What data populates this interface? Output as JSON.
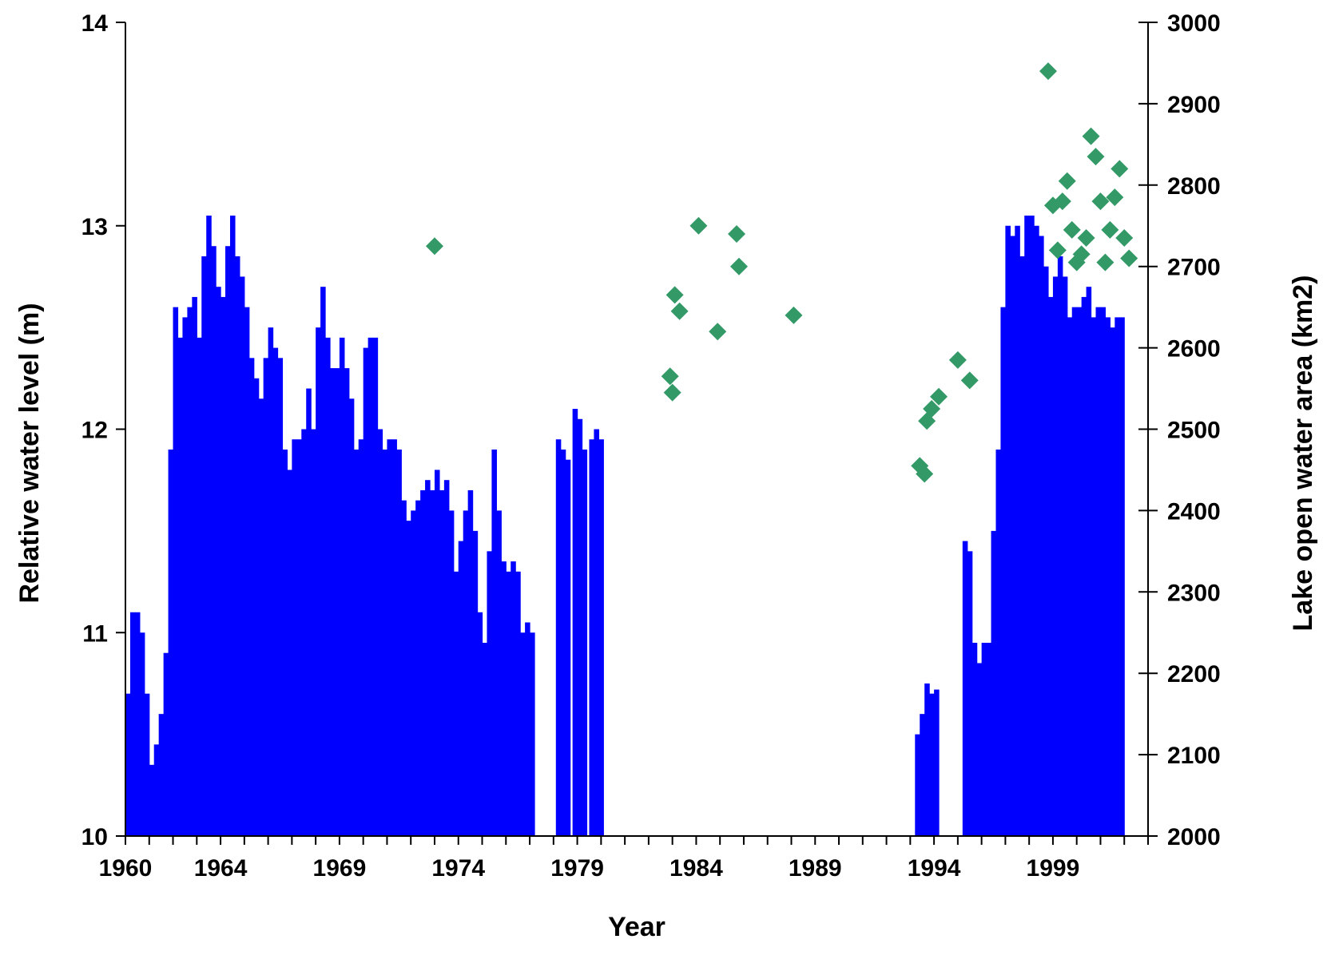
{
  "chart_data": {
    "type": "bar+scatter",
    "title": "",
    "xlabel": "Year",
    "ylabel_left": "Relative water level (m)",
    "ylabel_right": "Lake open water area (km2)",
    "xlim": [
      1960,
      2003
    ],
    "ylim_left": [
      10,
      14
    ],
    "ylim_right": [
      2000,
      3000
    ],
    "x_tick_labels": [
      "1960",
      "1964",
      "1969",
      "1974",
      "1979",
      "1984",
      "1989",
      "1994",
      "1999"
    ],
    "y_left_tick_labels": [
      "10",
      "11",
      "12",
      "13",
      "14"
    ],
    "y_right_tick_labels": [
      "2000",
      "2100",
      "2200",
      "2300",
      "2400",
      "2500",
      "2600",
      "2700",
      "2800",
      "2900",
      "3000"
    ],
    "grid": false,
    "legend": "none",
    "series": [
      {
        "kind": "bar",
        "color": "#0000ff",
        "axis": "left",
        "points": [
          [
            1960.0,
            10.7
          ],
          [
            1960.2,
            11.1
          ],
          [
            1960.4,
            11.1
          ],
          [
            1960.6,
            11.0
          ],
          [
            1960.8,
            10.7
          ],
          [
            1961.0,
            10.35
          ],
          [
            1961.2,
            10.45
          ],
          [
            1961.4,
            10.6
          ],
          [
            1961.6,
            10.9
          ],
          [
            1961.8,
            11.9
          ],
          [
            1962.0,
            12.6
          ],
          [
            1962.2,
            12.45
          ],
          [
            1962.4,
            12.55
          ],
          [
            1962.6,
            12.6
          ],
          [
            1962.8,
            12.65
          ],
          [
            1963.0,
            12.45
          ],
          [
            1963.2,
            12.85
          ],
          [
            1963.4,
            13.05
          ],
          [
            1963.6,
            12.9
          ],
          [
            1963.8,
            12.7
          ],
          [
            1964.0,
            12.65
          ],
          [
            1964.2,
            12.9
          ],
          [
            1964.4,
            13.05
          ],
          [
            1964.6,
            12.85
          ],
          [
            1964.8,
            12.75
          ],
          [
            1965.0,
            12.6
          ],
          [
            1965.2,
            12.35
          ],
          [
            1965.4,
            12.25
          ],
          [
            1965.6,
            12.15
          ],
          [
            1965.8,
            12.35
          ],
          [
            1966.0,
            12.5
          ],
          [
            1966.2,
            12.4
          ],
          [
            1966.4,
            12.35
          ],
          [
            1966.6,
            11.9
          ],
          [
            1966.8,
            11.8
          ],
          [
            1967.0,
            11.95
          ],
          [
            1967.2,
            11.95
          ],
          [
            1967.4,
            12.0
          ],
          [
            1967.6,
            12.2
          ],
          [
            1967.8,
            12.0
          ],
          [
            1968.0,
            12.5
          ],
          [
            1968.2,
            12.7
          ],
          [
            1968.4,
            12.45
          ],
          [
            1968.6,
            12.3
          ],
          [
            1968.8,
            12.3
          ],
          [
            1969.0,
            12.45
          ],
          [
            1969.2,
            12.3
          ],
          [
            1969.4,
            12.15
          ],
          [
            1969.6,
            11.9
          ],
          [
            1969.8,
            11.95
          ],
          [
            1970.0,
            12.4
          ],
          [
            1970.2,
            12.45
          ],
          [
            1970.4,
            12.45
          ],
          [
            1970.6,
            12.0
          ],
          [
            1970.8,
            11.9
          ],
          [
            1971.0,
            11.95
          ],
          [
            1971.2,
            11.95
          ],
          [
            1971.4,
            11.9
          ],
          [
            1971.6,
            11.65
          ],
          [
            1971.8,
            11.55
          ],
          [
            1972.0,
            11.6
          ],
          [
            1972.2,
            11.65
          ],
          [
            1972.4,
            11.7
          ],
          [
            1972.6,
            11.75
          ],
          [
            1972.8,
            11.7
          ],
          [
            1973.0,
            11.8
          ],
          [
            1973.2,
            11.7
          ],
          [
            1973.4,
            11.75
          ],
          [
            1973.6,
            11.6
          ],
          [
            1973.8,
            11.3
          ],
          [
            1974.0,
            11.45
          ],
          [
            1974.2,
            11.6
          ],
          [
            1974.4,
            11.7
          ],
          [
            1974.6,
            11.5
          ],
          [
            1974.8,
            11.1
          ],
          [
            1975.0,
            10.95
          ],
          [
            1975.2,
            11.4
          ],
          [
            1975.4,
            11.9
          ],
          [
            1975.6,
            11.6
          ],
          [
            1975.8,
            11.35
          ],
          [
            1976.0,
            11.3
          ],
          [
            1976.2,
            11.35
          ],
          [
            1976.4,
            11.3
          ],
          [
            1976.6,
            11.0
          ],
          [
            1976.8,
            11.05
          ],
          [
            1977.0,
            11.0
          ],
          [
            1978.1,
            11.95
          ],
          [
            1978.3,
            11.9
          ],
          [
            1978.5,
            11.85
          ],
          [
            1978.8,
            12.1
          ],
          [
            1979.0,
            12.05
          ],
          [
            1979.2,
            11.9
          ],
          [
            1979.5,
            11.95
          ],
          [
            1979.7,
            12.0
          ],
          [
            1979.9,
            11.95
          ],
          [
            1993.2,
            10.5
          ],
          [
            1993.4,
            10.6
          ],
          [
            1993.6,
            10.75
          ],
          [
            1993.8,
            10.7
          ],
          [
            1994.0,
            10.72
          ],
          [
            1995.2,
            11.45
          ],
          [
            1995.4,
            11.4
          ],
          [
            1995.6,
            10.95
          ],
          [
            1995.8,
            10.85
          ],
          [
            1996.0,
            10.95
          ],
          [
            1996.2,
            10.95
          ],
          [
            1996.4,
            11.5
          ],
          [
            1996.6,
            11.9
          ],
          [
            1996.8,
            12.6
          ],
          [
            1997.0,
            13.0
          ],
          [
            1997.2,
            12.95
          ],
          [
            1997.4,
            13.0
          ],
          [
            1997.6,
            12.85
          ],
          [
            1997.8,
            13.05
          ],
          [
            1998.0,
            13.05
          ],
          [
            1998.2,
            13.0
          ],
          [
            1998.4,
            12.95
          ],
          [
            1998.6,
            12.8
          ],
          [
            1998.8,
            12.65
          ],
          [
            1999.0,
            12.75
          ],
          [
            1999.2,
            12.85
          ],
          [
            1999.4,
            12.75
          ],
          [
            1999.6,
            12.55
          ],
          [
            1999.8,
            12.6
          ],
          [
            2000.0,
            12.6
          ],
          [
            2000.2,
            12.65
          ],
          [
            2000.4,
            12.7
          ],
          [
            2000.6,
            12.55
          ],
          [
            2000.8,
            12.6
          ],
          [
            2001.0,
            12.6
          ],
          [
            2001.2,
            12.55
          ],
          [
            2001.4,
            12.5
          ],
          [
            2001.6,
            12.55
          ],
          [
            2001.8,
            12.55
          ]
        ]
      },
      {
        "kind": "scatter",
        "color": "#339966",
        "axis": "right",
        "marker": "diamond",
        "points": [
          [
            1973.0,
            2725
          ],
          [
            1982.9,
            2565
          ],
          [
            1983.0,
            2545
          ],
          [
            1983.1,
            2665
          ],
          [
            1983.3,
            2645
          ],
          [
            1984.1,
            2750
          ],
          [
            1984.9,
            2620
          ],
          [
            1985.7,
            2740
          ],
          [
            1985.8,
            2700
          ],
          [
            1988.1,
            2640
          ],
          [
            1993.4,
            2455
          ],
          [
            1993.6,
            2445
          ],
          [
            1993.7,
            2510
          ],
          [
            1993.9,
            2525
          ],
          [
            1994.2,
            2540
          ],
          [
            1995.0,
            2585
          ],
          [
            1995.5,
            2560
          ],
          [
            1998.8,
            2940
          ],
          [
            1999.0,
            2775
          ],
          [
            1999.2,
            2720
          ],
          [
            1999.4,
            2780
          ],
          [
            1999.6,
            2805
          ],
          [
            1999.8,
            2745
          ],
          [
            2000.0,
            2705
          ],
          [
            2000.2,
            2715
          ],
          [
            2000.4,
            2735
          ],
          [
            2000.6,
            2860
          ],
          [
            2000.8,
            2835
          ],
          [
            2001.0,
            2780
          ],
          [
            2001.2,
            2705
          ],
          [
            2001.4,
            2745
          ],
          [
            2001.6,
            2785
          ],
          [
            2001.8,
            2820
          ],
          [
            2002.0,
            2735
          ],
          [
            2002.2,
            2710
          ]
        ]
      }
    ]
  }
}
